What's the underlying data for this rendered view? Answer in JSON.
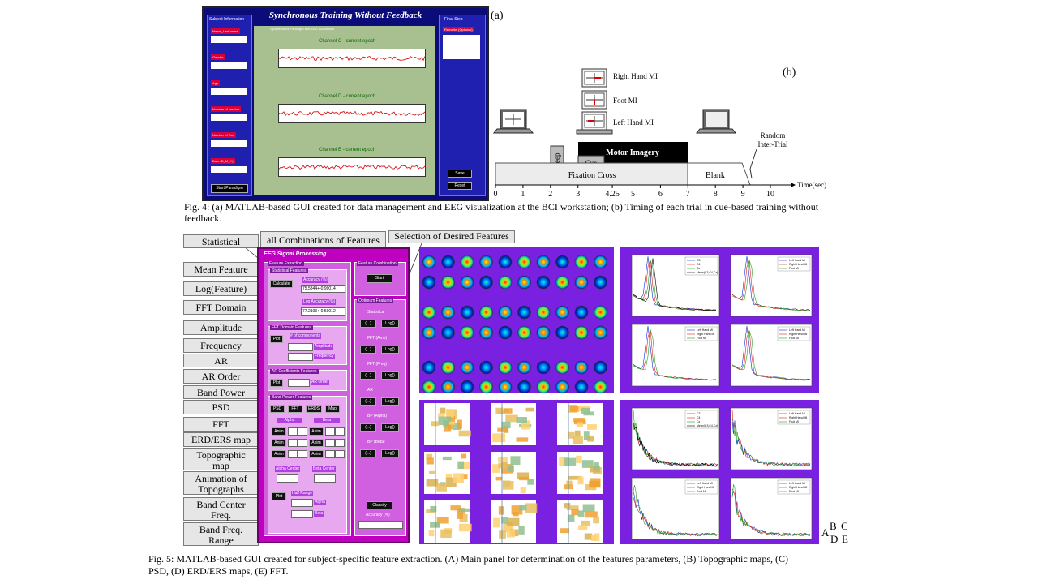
{
  "fig4": {
    "panel_a_tag": "(a)",
    "panel_b_tag": "(b)",
    "gui_title": "Synchronous Training Without Feedback",
    "subject_info_header": "Subject Information",
    "final_step_header": "Final Step",
    "plot_header": "Synchronous Paradigm and EEG Acquisition",
    "fields": [
      "Name_Last name",
      "Gender",
      "Age",
      "Number of session",
      "Number of Run",
      "Date (D_M_Y)"
    ],
    "remarks_label": "Remarks (Optional)",
    "start_button": "Start Paradigm",
    "save_button": "Save",
    "reset_button": "Reset",
    "channels": [
      "Channel C - current epoch",
      "Channel D - current epoch",
      "Channel E - current epoch"
    ],
    "timing": {
      "right_hand": "Right Hand MI",
      "foot": "Foot MI",
      "left_hand": "Left Hand MI",
      "random_inter_trial_1": "Random",
      "random_inter_trial_2": "Inter-Trial",
      "motor_imagery": "Motor Imagery",
      "beep": "Beep",
      "cue": "Cue",
      "fixation_cross": "Fixation Cross",
      "blank": "Blank",
      "axis_label": "Time(sec)",
      "ticks": [
        "0",
        "1",
        "2",
        "3",
        "4.25",
        "5",
        "6",
        "7",
        "8",
        "9",
        "10"
      ]
    },
    "caption_line1": "Fig. 4: (a) MATLAB-based GUI created for data management and EEG visualization at the BCI workstation; (b) Timing of each trial in cue-based training without",
    "caption_line2": "feedback."
  },
  "fig5": {
    "callouts": {
      "statistical": "Statistical",
      "all_combinations": "all Combinations of Features",
      "selection": "Selection of Desired Features",
      "mean_feature": "Mean Feature",
      "log_feature": "Log(Feature)",
      "fft_domain": "FFT Domain",
      "amplitude": "Amplitude",
      "frequency": "Frequency",
      "ar": "AR",
      "ar_order": "AR Order",
      "band_power": "Band Power",
      "psd": "PSD",
      "fft": "FFT",
      "erd_ers_map": "ERD/ERS map",
      "topographic_1": "Topographic",
      "topographic_2": "map",
      "animation_1": "Animation of",
      "animation_2": "Topographs",
      "band_center_1": "Band Center",
      "band_center_2": "Freq.",
      "band_freq_1": "Band Freq.",
      "band_freq_2": "Range"
    },
    "panel": {
      "title": "EEG Signal Processing",
      "feature_extraction": "Feature Extraction",
      "statistical_features": "Statistical Features",
      "calculate": "Calculate",
      "accuracy_label": "Accuracy (%)",
      "accuracy_value": "75.5344+-0.99014",
      "log_accuracy_label": "Log Accuracy (%)",
      "log_accuracy_value": "77.2103+-0.59012",
      "fft_domain_features": "FFT Domain Features",
      "plot": "Plot",
      "num_components": "# of components",
      "amplitude": "Amplitude",
      "frequency": "Frequency",
      "ar_features": "AR Coefficients Features",
      "ar_order": "AR Order",
      "band_power_features": "Band Power Features",
      "psd": "PSD",
      "fft": "FFT",
      "erds": "ERDS",
      "map": "Map",
      "alpha": "Alpha",
      "beta": "Beta",
      "anim": "Anim",
      "alpha_center": "Alpha Center",
      "beta_center": "Beta Center",
      "half_range": "Half Range",
      "feature_combination": "Feature Combination",
      "start": "Start",
      "optimum_features": "Optimum Features",
      "statistical": "Statistical",
      "fft_amp": "FFT (Amp)",
      "fft_freq": "FFT (Freq)",
      "ar": "AR",
      "bp_alpha": "BP (Alpha)",
      "bp_beta": "BP (Beta)",
      "dots": "(...)",
      "log": "Log()",
      "classify": "Classify",
      "accuracy_pct": "Accuracy (%)"
    },
    "psd_legend_a": [
      "C3",
      "C4",
      "Cz",
      "Mean(C3,C4,Cz)"
    ],
    "psd_legend_b": [
      "Left Hand MI",
      "Right Hand MI",
      "Foot MI"
    ],
    "corner_labels": {
      "a": "A",
      "b": "B",
      "c": "C",
      "d": "D",
      "e": "E"
    },
    "caption_line1": "Fig. 5: MATLAB-based GUI created for subject-specific feature extraction. (A) Main panel for determination of the features parameters, (B) Topographic maps, (C)",
    "caption_line2": "PSD, (D) ERD/ERS maps, (E) FFT."
  },
  "colors": {
    "gui_blue": "#0b0b7a",
    "gui_magenta": "#c000c0",
    "topo_background": "#7a20e0",
    "callout_gray": "#e6e6e6"
  }
}
